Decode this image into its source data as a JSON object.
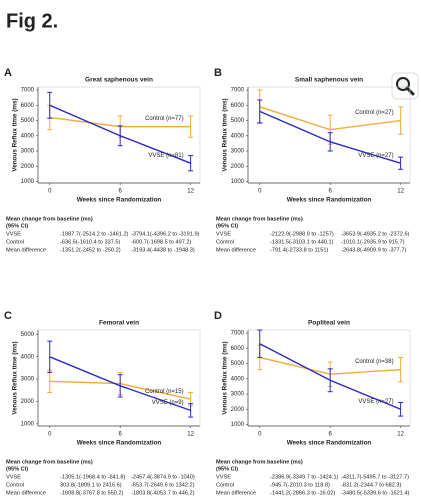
{
  "figure_title": "Fig 2.",
  "chart_data": [
    {
      "type": "line",
      "panel": "A",
      "title": "Great saphenous vein",
      "xlabel": "Weeks since Randomization",
      "ylabel": "Venous Reflux time (ms)",
      "x": [
        0,
        6,
        12
      ],
      "xlim": [
        -1,
        12.8
      ],
      "xticks": [
        0,
        6,
        12
      ],
      "ylim": [
        900,
        7200
      ],
      "yticks": [
        1000,
        2000,
        3000,
        4000,
        5000,
        6000,
        7000
      ],
      "series": [
        {
          "name": "Control (n=77)",
          "color": "#f0ac3c",
          "values": [
            5200,
            4600,
            4600
          ],
          "errors": [
            800,
            700,
            700
          ]
        },
        {
          "name": "VVSE (n=81)",
          "color": "#2a2bc6",
          "values": [
            6000,
            4000,
            2200
          ],
          "errors": [
            850,
            650,
            500
          ]
        }
      ],
      "table": {
        "header": [
          "Mean change from baseline (ms)",
          "(95% CI)"
        ],
        "rows": [
          [
            "VVSE",
            "-1987.7(-2514.2 to -1461.2)",
            "-3794.1(-4396.2 to -3191.9)"
          ],
          [
            "Control",
            "-636.5(-1610.4 to 337.5)",
            "-600.7(-1698.5 to 497.2)"
          ],
          [
            "Mean difference",
            "-1351.2(-2452 to -250.2)",
            "-3193.4(-4438 to -1948.3)"
          ]
        ]
      }
    },
    {
      "type": "line",
      "panel": "B",
      "title": "Small saphenous vein",
      "xlabel": "Weeks since Randomization",
      "ylabel": "Venous Reflux time (ms)",
      "x": [
        0,
        6,
        12
      ],
      "xlim": [
        -1,
        12.8
      ],
      "xticks": [
        0,
        6,
        12
      ],
      "ylim": [
        900,
        7200
      ],
      "yticks": [
        1000,
        2000,
        3000,
        4000,
        5000,
        6000,
        7000
      ],
      "series": [
        {
          "name": "Control (n=27)",
          "color": "#f0ac3c",
          "values": [
            5900,
            4400,
            5000
          ],
          "errors": [
            1100,
            950,
            900
          ]
        },
        {
          "name": "VVSE (n=27)",
          "color": "#2a2bc6",
          "values": [
            5600,
            3600,
            2200
          ],
          "errors": [
            750,
            600,
            400
          ]
        }
      ],
      "table": {
        "header": [
          "Mean change from baseline (ms)",
          "(95% CI)"
        ],
        "rows": [
          [
            "VVSE",
            "-2122.9(-2988.9 to -1257)",
            "-3653.9(-4935.2 to -2372.6)"
          ],
          [
            "Control",
            "-1331.5(-3103.1 to 440.1)",
            "-1010.1(-2935.9 to 915.7)"
          ],
          [
            "Mean difference",
            "-791.4(-2733.8 to 1151)",
            "-2643.8(-4909.9 to -377.7)"
          ]
        ]
      }
    },
    {
      "type": "line",
      "panel": "C",
      "title": "Femoral vein",
      "xlabel": "Weeks since Randomization",
      "ylabel": "Venous Reflux time (ms)",
      "x": [
        0,
        6,
        12
      ],
      "xlim": [
        -1,
        12.8
      ],
      "xticks": [
        0,
        6,
        12
      ],
      "ylim": [
        900,
        5200
      ],
      "yticks": [
        1000,
        2000,
        3000,
        4000,
        5000
      ],
      "series": [
        {
          "name": "Control (n=15)",
          "color": "#f0ac3c",
          "values": [
            2900,
            2800,
            2100
          ],
          "errors": [
            500,
            500,
            300
          ]
        },
        {
          "name": "VVSE (n=9)",
          "color": "#2a2bc6",
          "values": [
            4000,
            2700,
            1600
          ],
          "errors": [
            700,
            500,
            300
          ]
        }
      ],
      "table": {
        "header": [
          "Mean change from baseline (ms)",
          "(95% CI)"
        ],
        "rows": [
          [
            "VVSE",
            "-1305.1(-1968.4 to -641.8)",
            "-2457.4(-3874.9 to -1040)"
          ],
          [
            "Control",
            "303.8(-1809.1 to 2416.6)",
            "-653.7(-2649.6 to 1342.2)"
          ],
          [
            "Mean difference",
            "-1608.8(-3767.8 to 550.2)",
            "-1803.8(-4053.7 to 446.2)"
          ]
        ]
      }
    },
    {
      "type": "line",
      "panel": "D",
      "title": "Popliteal vein",
      "xlabel": "Weeks since Randomization",
      "ylabel": "Venous Reflux time (ms)",
      "x": [
        0,
        6,
        12
      ],
      "xlim": [
        -1,
        12.8
      ],
      "xticks": [
        0,
        6,
        12
      ],
      "ylim": [
        900,
        7200
      ],
      "yticks": [
        1000,
        2000,
        3000,
        4000,
        5000,
        6000,
        7000
      ],
      "series": [
        {
          "name": "Control (n=38)",
          "color": "#f0ac3c",
          "values": [
            5400,
            4300,
            4600
          ],
          "errors": [
            800,
            800,
            800
          ]
        },
        {
          "name": "VVSE (n=27)",
          "color": "#2a2bc6",
          "values": [
            6300,
            3900,
            2000
          ],
          "errors": [
            900,
            750,
            450
          ]
        }
      ],
      "table": {
        "header": [
          "Mean change from baseline (ms)",
          "(95% CI)"
        ],
        "rows": [
          [
            "VVSE",
            "-2386.9(-3349.7 to -1424.1)",
            "-4311.7(-5495.7 to -3127.7)"
          ],
          [
            "Control",
            "-945.7(-2010.3 to 118.8)",
            "-831.2(-2344.7 to 682.3)"
          ],
          [
            "Mean difference",
            "-1441.2(-2866.3 to -16.02)",
            "-3480.5(-5339.6 to -1621.4)"
          ]
        ]
      }
    }
  ]
}
